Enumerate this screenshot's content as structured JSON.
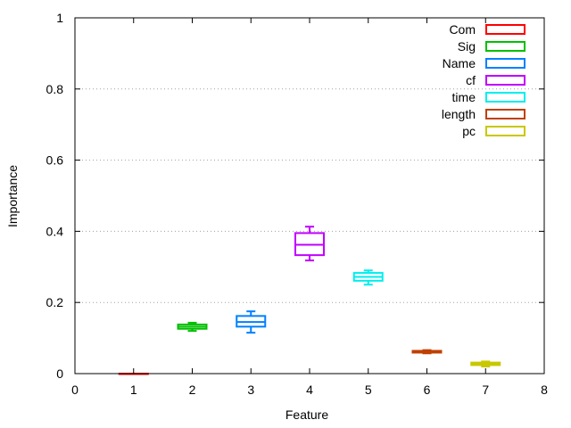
{
  "chart_data": {
    "type": "box",
    "xlabel": "Feature",
    "ylabel": "Importance",
    "xlim": [
      0,
      8
    ],
    "ylim": [
      0,
      1
    ],
    "x_ticks": [
      "0",
      "1",
      "2",
      "3",
      "4",
      "5",
      "6",
      "7",
      "8"
    ],
    "y_ticks": [
      "0",
      "0.2",
      "0.4",
      "0.6",
      "0.8",
      "1"
    ],
    "grid": "horizontal dotted",
    "legend_position": "top-right",
    "series": [
      {
        "name": "Com",
        "x": 1,
        "color": "#ff0000",
        "min": 0.0,
        "q1": 0.0,
        "median": 0.0,
        "q3": 0.0,
        "max": 0.0
      },
      {
        "name": "Sig",
        "x": 2,
        "color": "#00c000",
        "min": 0.12,
        "q1": 0.126,
        "median": 0.132,
        "q3": 0.138,
        "max": 0.143
      },
      {
        "name": "Name",
        "x": 3,
        "color": "#0080ff",
        "min": 0.115,
        "q1": 0.132,
        "median": 0.145,
        "q3": 0.162,
        "max": 0.175
      },
      {
        "name": "cf",
        "x": 4,
        "color": "#c000ff",
        "min": 0.318,
        "q1": 0.333,
        "median": 0.362,
        "q3": 0.395,
        "max": 0.413
      },
      {
        "name": "time",
        "x": 5,
        "color": "#00eeee",
        "min": 0.25,
        "q1": 0.261,
        "median": 0.272,
        "q3": 0.283,
        "max": 0.29
      },
      {
        "name": "length",
        "x": 6,
        "color": "#c04000",
        "min": 0.057,
        "q1": 0.059,
        "median": 0.062,
        "q3": 0.064,
        "max": 0.066
      },
      {
        "name": "pc",
        "x": 7,
        "color": "#c8c800",
        "min": 0.02,
        "q1": 0.024,
        "median": 0.027,
        "q3": 0.031,
        "max": 0.034
      }
    ]
  }
}
